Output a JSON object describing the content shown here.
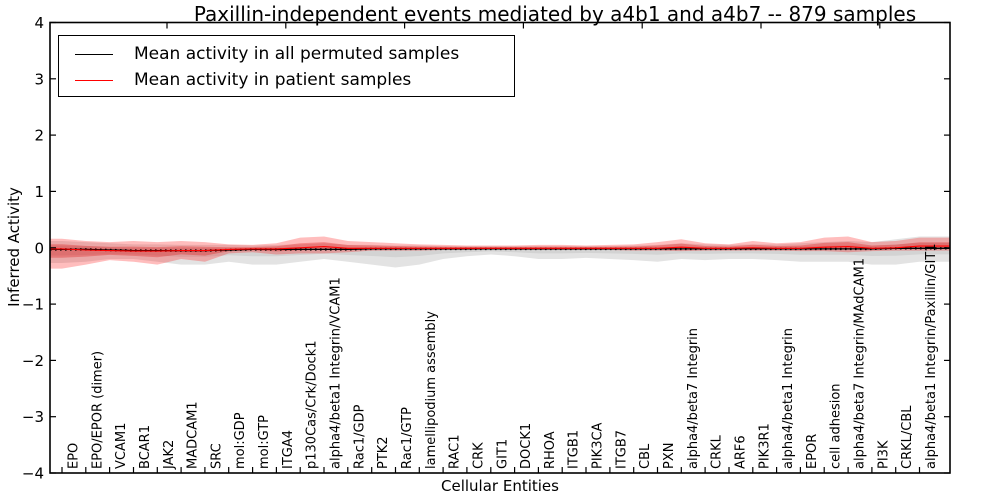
{
  "figure": {
    "title": "Paxillin-independent events mediated by a4b1 and a4b7 -- 879 samples",
    "xlabel": "Cellular Entities",
    "ylabel": "Inferred Activity"
  },
  "legend": {
    "entries": [
      {
        "label": "Mean activity in all permuted samples",
        "color": "#000000"
      },
      {
        "label": "Mean activity in patient samples",
        "color": "#ff0000"
      }
    ]
  },
  "chart_data": {
    "type": "line",
    "title": "Paxillin-independent events mediated by a4b1 and a4b7 -- 879 samples",
    "xlabel": "Cellular Entities",
    "ylabel": "Inferred Activity",
    "ylim": [
      -4,
      4
    ],
    "ytick_values": [
      4,
      3,
      2,
      1,
      0,
      -1,
      -2,
      -3,
      -4
    ],
    "ytick_labels": [
      "4",
      "3",
      "2",
      "1",
      "0",
      "−1",
      "−2",
      "−3",
      "−4"
    ],
    "grid": false,
    "legend_position": "upper left",
    "categories": [
      "EPO",
      "EPO/EPOR (dimer)",
      "VCAM1",
      "BCAR1",
      "JAK2",
      "MADCAM1",
      "SRC",
      "mol:GDP",
      "mol:GTP",
      "ITGA4",
      "p130Cas/Crk/Dock1",
      "alpha4/beta1 Integrin/VCAM1",
      "Rac1/GDP",
      "PTK2",
      "Rac1/GTP",
      "lamellipodium assembly",
      "RAC1",
      "CRK",
      "GIT1",
      "DOCK1",
      "RHOA",
      "ITGB1",
      "PIK3CA",
      "ITGB7",
      "CBL",
      "PXN",
      "alpha4/beta7 Integrin",
      "CRKL",
      "ARF6",
      "PIK3R1",
      "alpha4/beta1 Integrin",
      "EPOR",
      "cell adhesion",
      "alpha4/beta7 Integrin/MAdCAM1",
      "PI3K",
      "CRKL/CBL",
      "alpha4/beta1 Integrin/Paxillin/GIT1"
    ],
    "series": [
      {
        "name": "Mean activity in all permuted samples",
        "color": "#000000",
        "values": [
          -0.03,
          -0.03,
          -0.04,
          -0.05,
          -0.05,
          -0.05,
          -0.05,
          -0.04,
          -0.03,
          -0.03,
          -0.03,
          -0.03,
          -0.03,
          -0.02,
          -0.02,
          -0.02,
          -0.02,
          -0.02,
          -0.02,
          -0.02,
          -0.02,
          -0.02,
          -0.02,
          -0.02,
          -0.02,
          -0.02,
          -0.02,
          -0.02,
          -0.02,
          -0.02,
          -0.02,
          -0.02,
          -0.02,
          -0.02,
          -0.02,
          -0.01,
          -0.01
        ]
      },
      {
        "name": "Mean activity in patient samples",
        "color": "#ff0000",
        "values": [
          -0.02,
          -0.04,
          -0.05,
          -0.06,
          -0.06,
          -0.05,
          -0.05,
          -0.03,
          -0.02,
          -0.02,
          0.0,
          0.02,
          -0.01,
          -0.01,
          -0.01,
          -0.01,
          -0.01,
          -0.01,
          -0.01,
          -0.01,
          -0.01,
          -0.01,
          -0.01,
          -0.01,
          -0.01,
          -0.01,
          0.01,
          -0.01,
          -0.01,
          0.0,
          -0.01,
          -0.01,
          0.01,
          0.02,
          -0.01,
          0.0,
          0.03
        ]
      }
    ],
    "bands": [
      {
        "name": "permuted-sample-range",
        "series": "Mean activity in all permuted samples",
        "outer_color": "rgba(0,0,0,0.11)",
        "inner_color": "rgba(0,0,0,0.07)",
        "upper": [
          0.12,
          0.1,
          0.08,
          0.06,
          0.06,
          0.05,
          0.05,
          0.05,
          0.04,
          0.05,
          0.06,
          0.08,
          0.05,
          0.05,
          0.04,
          0.04,
          0.03,
          0.03,
          0.03,
          0.03,
          0.03,
          0.03,
          0.03,
          0.03,
          0.04,
          0.05,
          0.08,
          0.06,
          0.05,
          0.06,
          0.06,
          0.08,
          0.1,
          0.12,
          0.1,
          0.15,
          0.2
        ],
        "lower": [
          -0.27,
          -0.25,
          -0.2,
          -0.2,
          -0.25,
          -0.3,
          -0.3,
          -0.25,
          -0.3,
          -0.3,
          -0.25,
          -0.2,
          -0.25,
          -0.3,
          -0.35,
          -0.3,
          -0.2,
          -0.15,
          -0.12,
          -0.15,
          -0.2,
          -0.2,
          -0.18,
          -0.2,
          -0.22,
          -0.25,
          -0.2,
          -0.22,
          -0.2,
          -0.2,
          -0.22,
          -0.25,
          -0.25,
          -0.25,
          -0.3,
          -0.3,
          -0.25
        ]
      },
      {
        "name": "patient-sample-range",
        "series": "Mean activity in patient samples",
        "outer_color": "rgba(255,0,0,0.26)",
        "inner_color": "rgba(220,0,0,0.28)",
        "upper": [
          0.16,
          0.12,
          0.1,
          0.12,
          0.1,
          0.12,
          0.1,
          0.06,
          0.05,
          0.08,
          0.18,
          0.2,
          0.12,
          0.1,
          0.08,
          0.06,
          0.05,
          0.04,
          0.04,
          0.04,
          0.05,
          0.05,
          0.04,
          0.05,
          0.06,
          0.1,
          0.15,
          0.08,
          0.06,
          0.12,
          0.08,
          0.1,
          0.18,
          0.2,
          0.1,
          0.12,
          0.18
        ],
        "lower": [
          -0.37,
          -0.3,
          -0.22,
          -0.25,
          -0.3,
          -0.2,
          -0.25,
          -0.1,
          -0.08,
          -0.12,
          -0.1,
          -0.1,
          -0.08,
          -0.05,
          -0.05,
          -0.05,
          -0.04,
          -0.04,
          -0.03,
          -0.04,
          -0.04,
          -0.04,
          -0.04,
          -0.04,
          -0.05,
          -0.05,
          -0.06,
          -0.05,
          -0.05,
          -0.05,
          -0.05,
          -0.06,
          -0.06,
          -0.08,
          -0.06,
          -0.05,
          -0.05
        ]
      }
    ]
  }
}
